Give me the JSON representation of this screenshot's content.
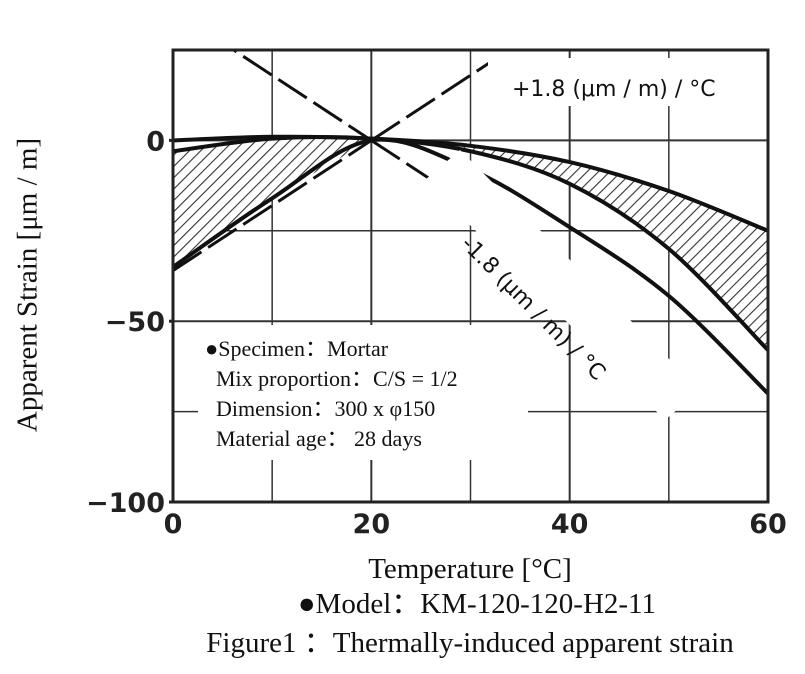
{
  "chart_data": {
    "type": "line",
    "xlabel": "Temperature [°C]",
    "ylabel": "Apparent Strain [μm / m]",
    "xlim": [
      0,
      60
    ],
    "ylim": [
      -100,
      25
    ],
    "xticks": [
      "0",
      "20",
      "40",
      "60"
    ],
    "yticks": [
      "0",
      "−50",
      "−100"
    ],
    "grid": true,
    "series": [
      {
        "name": "",
        "x": [
          0,
          10,
          20,
          30,
          40,
          50,
          60
        ],
        "y": [
          0,
          1,
          0.5,
          -1.5,
          -6,
          -14,
          -25
        ]
      },
      {
        "name": "",
        "x": [
          0,
          10,
          20,
          30,
          40,
          50,
          60
        ],
        "y": [
          -3,
          0.5,
          0.5,
          -3,
          -12,
          -30,
          -58
        ]
      },
      {
        "name": "",
        "x": [
          0,
          10,
          20,
          30,
          40,
          50,
          60
        ],
        "y": [
          -35,
          -16,
          0,
          -8,
          -24,
          -43,
          -70
        ]
      },
      {
        "name": "",
        "x": [
          0,
          20,
          32
        ],
        "y": [
          -36,
          0,
          21.6
        ]
      },
      {
        "name": "",
        "x": [
          0,
          20,
          32
        ],
        "y": [
          36,
          0,
          -21.6
        ]
      }
    ],
    "slope_labels": [
      "+1.8  (μm / m) / °C",
      "-1.8 (μm / m) / °C"
    ],
    "annotation": {
      "specimen": "●Specimen：Mortar",
      "mix": "Mix proportion：C/S = 1/2",
      "dimension": "Dimension：300 x φ150",
      "age": "Material age：  28 days"
    },
    "model": "●Model：KM-120-120-H2-11",
    "caption": "Figure1 ：Thermally-induced apparent strain"
  }
}
